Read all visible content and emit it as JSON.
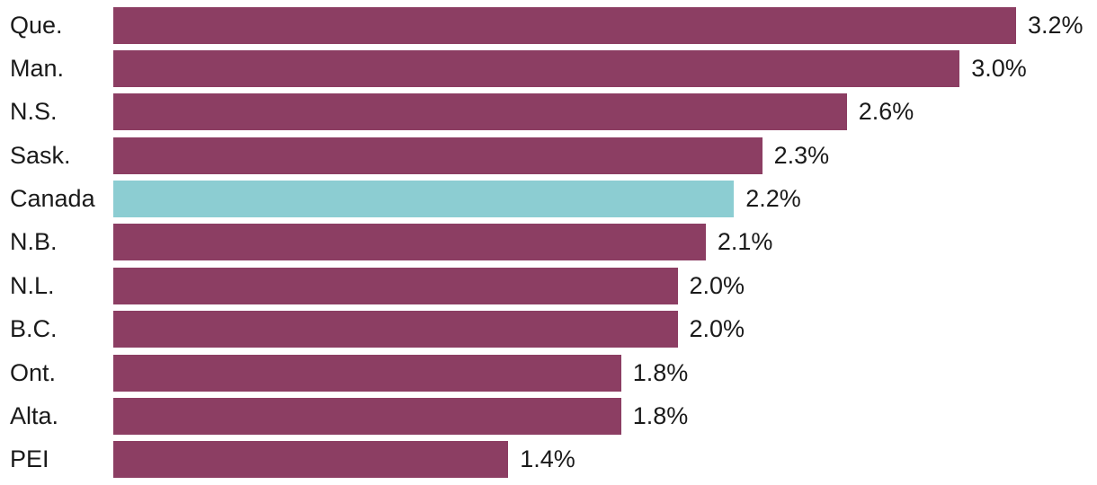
{
  "chart_data": {
    "type": "bar",
    "orientation": "horizontal",
    "categories": [
      "Que.",
      "Man.",
      "N.S.",
      "Sask.",
      "Canada",
      "N.B.",
      "N.L.",
      "B.C.",
      "Ont.",
      "Alta.",
      "PEI"
    ],
    "values": [
      3.2,
      3.0,
      2.6,
      2.3,
      2.2,
      2.1,
      2.0,
      2.0,
      1.8,
      1.8,
      1.4
    ],
    "value_labels": [
      "3.2%",
      "3.0%",
      "2.6%",
      "2.3%",
      "2.2%",
      "2.1%",
      "2.0%",
      "2.0%",
      "1.8%",
      "1.8%",
      "1.4%"
    ],
    "title": "",
    "xlabel": "",
    "ylabel": "",
    "xlim": [
      0,
      3.2
    ],
    "grid": false,
    "legend": "none",
    "bar_color": "#8c3e63",
    "highlight_category": "Canada",
    "highlight_color": "#8ccdd2",
    "text_color": "#1a1a1a",
    "background_color": "#ffffff"
  }
}
